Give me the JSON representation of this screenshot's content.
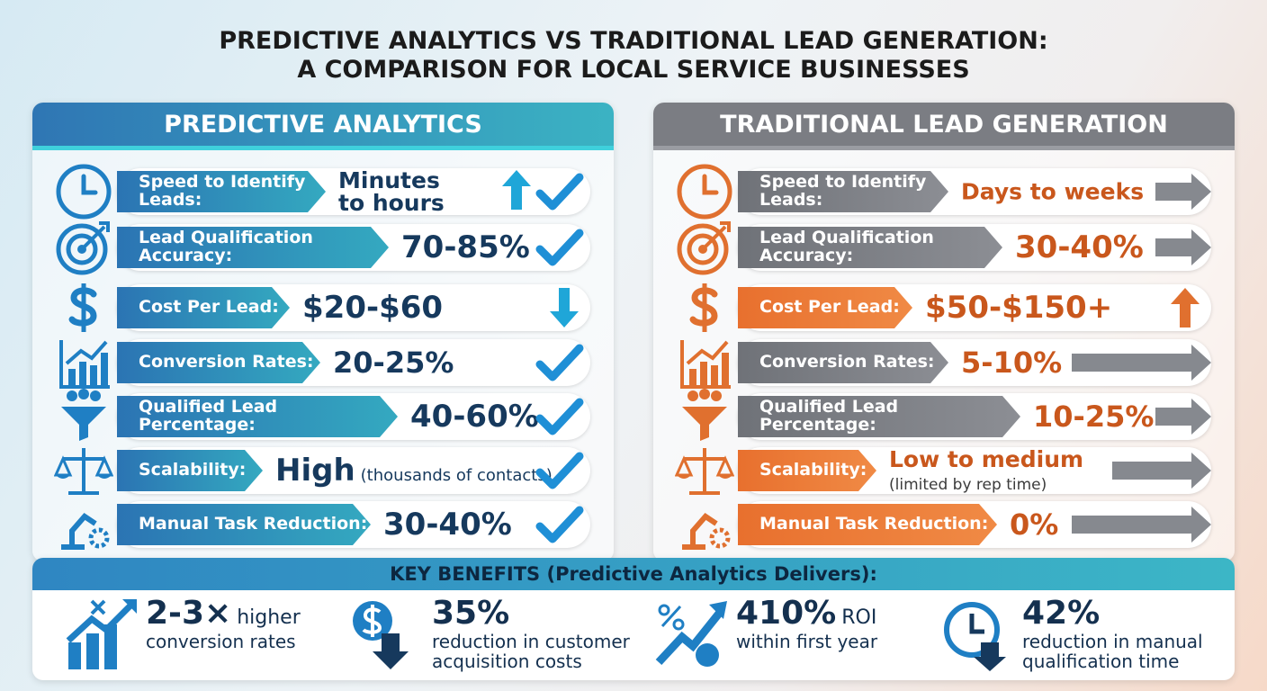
{
  "title": [
    "PREDICTIVE ANALYTICS VS TRADITIONAL LEAD GENERATION:",
    "A COMPARISON FOR LOCAL SERVICE BUSINESSES"
  ],
  "panels": [
    {
      "heading": "PREDICTIVE ANALYTICS",
      "rows": [
        {
          "label": "Speed to Identify Leads:",
          "value": "Minutes to hours"
        },
        {
          "label": "Lead Qualification Accuracy:",
          "value": "70-85%"
        },
        {
          "label": "Cost Per Lead:",
          "value": "$20-$60"
        },
        {
          "label": "Conversion Rates:",
          "value": "20-25%"
        },
        {
          "label": "Qualified Lead Percentage:",
          "value": "40-60%"
        },
        {
          "label": "Scalability:",
          "value": "High",
          "note": "(thousands of contacts)"
        },
        {
          "label": "Manual Task Reduction:",
          "value": "30-40%"
        }
      ]
    },
    {
      "heading": "TRADITIONAL LEAD GENERATION",
      "rows": [
        {
          "label": "Speed to Identify Leads:",
          "value": "Days to weeks"
        },
        {
          "label": "Lead Qualification Accuracy:",
          "value": "30-40%"
        },
        {
          "label": "Cost Per Lead:",
          "value": "$50-$150+"
        },
        {
          "label": "Conversion Rates:",
          "value": "5-10%"
        },
        {
          "label": "Qualified Lead Percentage:",
          "value": "10-25%"
        },
        {
          "label": "Scalability:",
          "value": "Low to medium",
          "note": "(limited by rep time)"
        },
        {
          "label": "Manual Task Reduction:",
          "value": "0%"
        }
      ]
    }
  ],
  "benefits": {
    "heading": "KEY BENEFITS (Predictive Analytics Delivers):",
    "items": [
      {
        "value": "2-3×",
        "suffix": "higher",
        "text": "conversion rates"
      },
      {
        "value": "35%",
        "text": "reduction in customer acquisition costs"
      },
      {
        "value": "410%",
        "suffix": "ROI",
        "text": "within first year"
      },
      {
        "value": "42%",
        "text": "reduction in manual qualification time"
      }
    ]
  }
}
